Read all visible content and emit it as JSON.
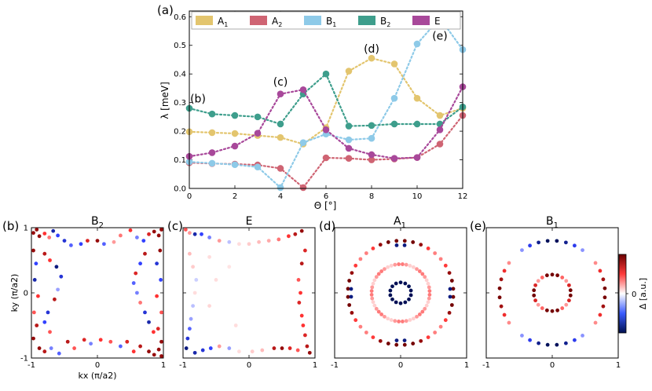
{
  "colors": {
    "A1": "#e3c56e",
    "A2": "#cf6473",
    "B1": "#8ecae8",
    "B2": "#3e9e8c",
    "E": "#a8489a"
  },
  "chart_data": [
    {
      "type": "line",
      "panel_label": "(a)",
      "title": "",
      "xlabel": "Θ [°]",
      "ylabel": "λ [meV]",
      "xlim": [
        0,
        12
      ],
      "ylim": [
        0.0,
        0.62
      ],
      "xticks": [
        "0",
        "2",
        "4",
        "6",
        "8",
        "10",
        "12"
      ],
      "yticks": [
        "0.0",
        "0.1",
        "0.2",
        "0.3",
        "0.4",
        "0.5",
        "0.6"
      ],
      "x": [
        0,
        1,
        2,
        3,
        4,
        5,
        6,
        7,
        8,
        9,
        10,
        11,
        12
      ],
      "series": [
        {
          "name": "A1",
          "label_main": "A",
          "label_sub": "1",
          "values": [
            0.198,
            0.195,
            0.192,
            0.185,
            0.178,
            0.155,
            0.212,
            0.41,
            0.455,
            0.435,
            0.315,
            0.255,
            0.28
          ]
        },
        {
          "name": "A2",
          "label_main": "A",
          "label_sub": "2",
          "values": [
            0.09,
            0.087,
            0.085,
            0.082,
            0.07,
            0.003,
            0.107,
            0.105,
            0.1,
            0.103,
            0.108,
            0.155,
            0.255
          ]
        },
        {
          "name": "B1",
          "label_main": "B",
          "label_sub": "1",
          "values": [
            0.093,
            0.088,
            0.083,
            0.075,
            0.003,
            0.16,
            0.19,
            0.17,
            0.175,
            0.315,
            0.505,
            0.595,
            0.485
          ]
        },
        {
          "name": "B2",
          "label_main": "B",
          "label_sub": "2",
          "values": [
            0.28,
            0.26,
            0.255,
            0.25,
            0.225,
            0.33,
            0.4,
            0.218,
            0.22,
            0.225,
            0.225,
            0.225,
            0.285
          ]
        },
        {
          "name": "E",
          "label_main": "E",
          "label_sub": "",
          "values": [
            0.112,
            0.125,
            0.148,
            0.193,
            0.33,
            0.345,
            0.205,
            0.14,
            0.118,
            0.105,
            0.108,
            0.205,
            0.355
          ]
        }
      ],
      "annotations": [
        {
          "text": "(b)",
          "x": 0,
          "y": 0.3
        },
        {
          "text": "(c)",
          "x": 4,
          "y": 0.36
        },
        {
          "text": "(d)",
          "x": 8,
          "y": 0.475
        },
        {
          "text": "(e)",
          "x": 11,
          "y": 0.52
        }
      ],
      "legend": "top"
    },
    {
      "type": "scatter",
      "panel_label": "(b)",
      "title_main": "B",
      "title_sub": "2",
      "xlabel": "kx (π/a2)",
      "ylabel": "ky (π/a2)",
      "xlim": [
        -1,
        1
      ],
      "ylim": [
        -1,
        1
      ],
      "xticks": [
        "-1",
        "0",
        "1"
      ],
      "yticks": [
        "-1",
        "0",
        "1"
      ],
      "points": [
        [
          -0.97,
          0.92,
          0.9
        ],
        [
          -0.92,
          0.97,
          0.9
        ],
        [
          -0.88,
          0.87,
          0.9
        ],
        [
          -0.8,
          0.91,
          0.6
        ],
        [
          -0.73,
          0.85,
          0.4
        ],
        [
          -0.67,
          0.95,
          -0.8
        ],
        [
          -0.6,
          0.88,
          -0.6
        ],
        [
          -0.5,
          0.8,
          -0.7
        ],
        [
          -0.4,
          0.73,
          -0.5
        ],
        [
          -0.25,
          0.75,
          -0.6
        ],
        [
          -0.15,
          0.8,
          0.7
        ],
        [
          0.0,
          0.8,
          0.9
        ],
        [
          0.1,
          0.75,
          -0.5
        ],
        [
          0.25,
          0.78,
          0.3
        ],
        [
          0.35,
          0.88,
          0.4
        ],
        [
          0.5,
          0.96,
          0.6
        ],
        [
          0.6,
          0.85,
          -0.4
        ],
        [
          0.7,
          0.8,
          -0.6
        ],
        [
          0.78,
          0.9,
          0.7
        ],
        [
          0.86,
          0.94,
          0.9
        ],
        [
          0.93,
          0.88,
          0.9
        ],
        [
          0.97,
          0.97,
          0.9
        ],
        [
          -0.97,
          0.65,
          0.9
        ],
        [
          -0.93,
          0.45,
          -0.6
        ],
        [
          -0.95,
          0.2,
          -0.8
        ],
        [
          -0.9,
          -0.05,
          0.6
        ],
        [
          -0.96,
          -0.3,
          0.5
        ],
        [
          -0.92,
          -0.5,
          0.8
        ],
        [
          -0.97,
          -0.7,
          0.9
        ],
        [
          -0.88,
          -0.85,
          0.9
        ],
        [
          -0.8,
          0.6,
          0.8
        ],
        [
          -0.72,
          0.5,
          0.6
        ],
        [
          -0.62,
          0.4,
          -0.9
        ],
        [
          -0.55,
          0.25,
          -0.7
        ],
        [
          -0.6,
          0.05,
          -0.3
        ],
        [
          -0.65,
          -0.1,
          0.8
        ],
        [
          -0.75,
          -0.3,
          -0.7
        ],
        [
          -0.8,
          -0.45,
          -0.6
        ],
        [
          -0.72,
          -0.6,
          0.5
        ],
        [
          0.72,
          0.6,
          0.8
        ],
        [
          0.65,
          0.45,
          -0.6
        ],
        [
          0.58,
          0.3,
          0.7
        ],
        [
          0.55,
          0.15,
          -0.5
        ],
        [
          0.6,
          0.0,
          -0.4
        ],
        [
          0.65,
          -0.15,
          0.4
        ],
        [
          0.72,
          -0.3,
          -0.7
        ],
        [
          0.78,
          -0.45,
          -0.8
        ],
        [
          0.85,
          -0.6,
          0.6
        ],
        [
          0.95,
          0.65,
          0.9
        ],
        [
          0.9,
          0.45,
          -0.7
        ],
        [
          0.96,
          0.2,
          -0.6
        ],
        [
          0.9,
          -0.05,
          0.6
        ],
        [
          0.97,
          -0.3,
          0.5
        ],
        [
          0.92,
          -0.55,
          0.7
        ],
        [
          0.97,
          -0.75,
          0.9
        ],
        [
          -0.8,
          -0.9,
          0.8
        ],
        [
          -0.7,
          -0.85,
          -0.4
        ],
        [
          -0.58,
          -0.93,
          -0.5
        ],
        [
          -0.45,
          -0.75,
          0.8
        ],
        [
          -0.35,
          -0.85,
          0.5
        ],
        [
          -0.2,
          -0.72,
          0.7
        ],
        [
          -0.1,
          -0.78,
          -0.4
        ],
        [
          0.05,
          -0.72,
          0.6
        ],
        [
          0.2,
          -0.75,
          0.5
        ],
        [
          0.35,
          -0.82,
          -0.5
        ],
        [
          0.45,
          -0.75,
          0.7
        ],
        [
          0.55,
          -0.9,
          0.6
        ],
        [
          0.65,
          -0.82,
          0.8
        ],
        [
          0.78,
          -0.9,
          0.9
        ],
        [
          0.86,
          -0.95,
          0.9
        ],
        [
          0.93,
          -0.87,
          0.9
        ],
        [
          0.97,
          -0.97,
          0.9
        ]
      ]
    },
    {
      "type": "scatter",
      "panel_label": "(c)",
      "title_main": "E",
      "title_sub": "",
      "xlim": [
        -1,
        1
      ],
      "ylim": [
        -1,
        1
      ],
      "xticks": [
        "-1",
        "0",
        "1"
      ],
      "yticks": [],
      "points": [
        [
          -0.96,
          0.97,
          0.5
        ],
        [
          -0.9,
          0.92,
          0.3
        ],
        [
          -0.82,
          0.9,
          -0.8
        ],
        [
          -0.72,
          0.9,
          -0.6
        ],
        [
          -0.6,
          0.85,
          -0.4
        ],
        [
          -0.45,
          0.8,
          0.3
        ],
        [
          -0.3,
          0.78,
          -0.2
        ],
        [
          -0.15,
          0.75,
          0.1
        ],
        [
          0.0,
          0.75,
          0.15
        ],
        [
          0.15,
          0.78,
          0.2
        ],
        [
          0.3,
          0.8,
          0.25
        ],
        [
          0.45,
          0.82,
          0.4
        ],
        [
          0.6,
          0.87,
          0.6
        ],
        [
          0.7,
          0.9,
          0.8
        ],
        [
          0.8,
          0.95,
          0.9
        ],
        [
          -0.9,
          0.6,
          0.2
        ],
        [
          -0.85,
          0.4,
          0.15
        ],
        [
          -0.8,
          0.2,
          -0.15
        ],
        [
          -0.82,
          0.0,
          0.1
        ],
        [
          -0.85,
          -0.2,
          -0.2
        ],
        [
          -0.88,
          -0.4,
          -0.3
        ],
        [
          -0.9,
          -0.55,
          -0.5
        ],
        [
          -0.93,
          -0.7,
          -0.7
        ],
        [
          -0.95,
          -0.85,
          -0.9
        ],
        [
          -0.6,
          0.55,
          0.1
        ],
        [
          -0.5,
          0.2,
          0.1
        ],
        [
          -0.6,
          -0.2,
          0.12
        ],
        [
          -0.3,
          0.4,
          0.08
        ],
        [
          -0.2,
          -0.5,
          0.1
        ],
        [
          0.85,
          0.65,
          0.7
        ],
        [
          0.8,
          0.45,
          0.8
        ],
        [
          0.75,
          0.2,
          0.5
        ],
        [
          0.78,
          0.0,
          0.6
        ],
        [
          0.76,
          -0.15,
          0.7
        ],
        [
          0.8,
          -0.35,
          0.6
        ],
        [
          0.82,
          -0.5,
          0.6
        ],
        [
          0.85,
          -0.65,
          0.7
        ],
        [
          0.88,
          -0.82,
          0.8
        ],
        [
          0.92,
          -0.92,
          0.9
        ],
        [
          -0.82,
          -0.92,
          -0.8
        ],
        [
          -0.7,
          -0.88,
          -0.7
        ],
        [
          -0.58,
          -0.85,
          -0.6
        ],
        [
          -0.45,
          -0.82,
          0.3
        ],
        [
          -0.3,
          -0.85,
          -0.3
        ],
        [
          -0.15,
          -0.9,
          0.1
        ],
        [
          0.05,
          -0.9,
          0.15
        ],
        [
          0.2,
          -0.88,
          0.2
        ],
        [
          0.38,
          -0.85,
          0.8
        ],
        [
          0.5,
          -0.85,
          0.9
        ],
        [
          0.62,
          -0.85,
          0.7
        ],
        [
          0.74,
          -0.88,
          0.5
        ]
      ]
    },
    {
      "type": "scatter",
      "panel_label": "(d)",
      "title_main": "A",
      "title_sub": "1",
      "xlim": [
        -1,
        1
      ],
      "ylim": [
        -1,
        1
      ],
      "xticks": [
        "-1",
        "0",
        "1"
      ],
      "yticks": [],
      "rings": [
        {
          "r": 0.44,
          "n": 48,
          "amp": 0.55,
          "h": 4,
          "phase": 0.12,
          "min": 0.35
        },
        {
          "r": 0.8,
          "n": 40,
          "amp": 0.55,
          "h": 4,
          "phase": 0.9,
          "min": 0.35
        },
        {
          "r": 0.16,
          "n": 14,
          "amp": 0.0,
          "h": 0,
          "phase": 0,
          "min": -1.0
        }
      ],
      "points": [
        [
          -0.06,
          0.73,
          -0.9
        ],
        [
          0.06,
          0.73,
          -0.9
        ],
        [
          -0.06,
          -0.73,
          -0.9
        ],
        [
          0.06,
          -0.73,
          -0.9
        ],
        [
          -0.75,
          0.06,
          -0.9
        ],
        [
          -0.75,
          -0.06,
          -0.9
        ],
        [
          0.75,
          0.06,
          -0.9
        ],
        [
          0.75,
          -0.06,
          -0.9
        ]
      ]
    },
    {
      "type": "scatter",
      "panel_label": "(e)",
      "title_main": "B",
      "title_sub": "1",
      "xlim": [
        -1,
        1
      ],
      "ylim": [
        -1,
        1
      ],
      "xticks": [
        "-1",
        "0",
        "1"
      ],
      "yticks": [],
      "rings": [
        {
          "r": 0.28,
          "n": 22,
          "amp": 0.5,
          "h": 4,
          "phase": 0.78,
          "min": 0.0
        },
        {
          "r": 0.8,
          "n": 36,
          "amp": 1.0,
          "h": 2,
          "phase": 0,
          "min": 0.0
        }
      ],
      "points": []
    }
  ],
  "colorbar": {
    "label": "Δ [a.u.]",
    "tick": "0"
  }
}
